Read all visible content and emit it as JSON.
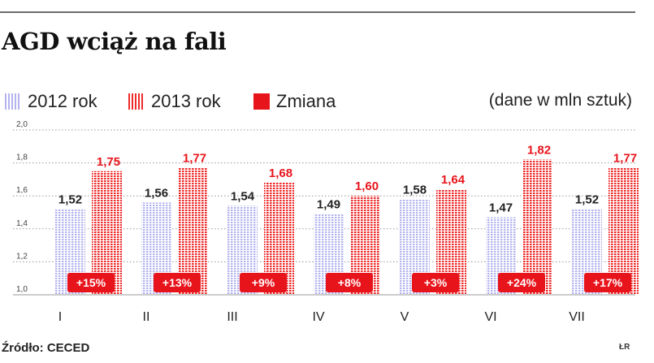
{
  "title": "AGD wciąż na fali",
  "legend": {
    "series_2012": "2012 rok",
    "series_2013": "2013 rok",
    "change": "Zmiana",
    "note": "(dane w mln sztuk)"
  },
  "source": "Źródło: CECED",
  "credit": "ŁR",
  "colors": {
    "series_2012": "#b3b3ee",
    "series_2013": "#ee2a2a",
    "change_badge": "#e8141c",
    "label_2012": "#222222",
    "label_2013": "#e8141c"
  },
  "chart_data": {
    "type": "bar",
    "categories": [
      "I",
      "II",
      "III",
      "IV",
      "V",
      "VI",
      "VII"
    ],
    "series": [
      {
        "name": "2012 rok",
        "values": [
          1.52,
          1.56,
          1.54,
          1.49,
          1.58,
          1.47,
          1.52
        ],
        "labels": [
          "1,52",
          "1,56",
          "1,54",
          "1,49",
          "1,58",
          "1,47",
          "1,52"
        ]
      },
      {
        "name": "2013 rok",
        "values": [
          1.75,
          1.77,
          1.68,
          1.6,
          1.64,
          1.82,
          1.77
        ],
        "labels": [
          "1,75",
          "1,77",
          "1,68",
          "1,60",
          "1,64",
          "1,82",
          "1,77"
        ]
      }
    ],
    "changes": [
      "+15%",
      "+13%",
      "+9%",
      "+8%",
      "+3%",
      "+24%",
      "+17%"
    ],
    "ylim": [
      1.0,
      2.0
    ],
    "yticks": [
      1.0,
      1.2,
      1.4,
      1.6,
      1.8,
      2.0
    ],
    "ytick_labels": [
      "1,0",
      "1,2",
      "1,4",
      "1,6",
      "1,8",
      "2,0"
    ],
    "grid": true,
    "unit_note": "(dane w mln sztuk)"
  }
}
